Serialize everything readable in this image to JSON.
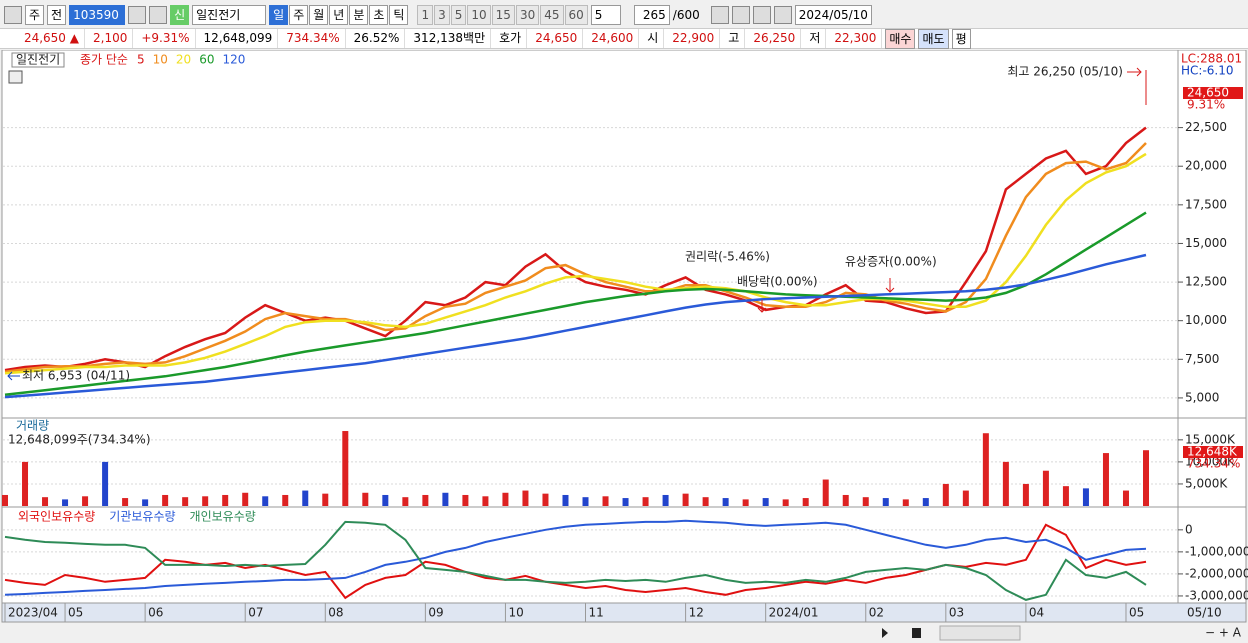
{
  "toolbar": {
    "type_label": "주",
    "mode": "전",
    "code": "103590",
    "badge": "신",
    "name": "일진전기",
    "periods": [
      "일",
      "주",
      "월",
      "년",
      "분",
      "초",
      "틱"
    ],
    "minutes": [
      "1",
      "3",
      "5",
      "10",
      "15",
      "30",
      "45",
      "60"
    ],
    "count_select": "5",
    "count": "265",
    "max": "/600",
    "date": "2024/05/10"
  },
  "info_bar": {
    "price": "24,650",
    "arrow": "▲",
    "change": "2,100",
    "change_pct": "+9.31%",
    "volume": "12,648,099",
    "volume_pct": "734.34%",
    "turnover": "26.52%",
    "amount": "312,138백만",
    "quote_label": "호가",
    "ask": "24,650",
    "bid": "24,600",
    "open_label": "시",
    "open": "22,900",
    "high_label": "고",
    "high": "26,250",
    "low_label": "저",
    "low": "22,300",
    "buy": "매수",
    "sell": "매도",
    "avg": "평"
  },
  "chart_data": [
    {
      "type": "line",
      "name": "일진전기",
      "legend_title": "종가 단순",
      "ylim": [
        3700,
        27200
      ],
      "grid": true,
      "yticks": [
        {
          "value": 5000,
          "label": "5,000"
        },
        {
          "value": 7500,
          "label": "7,500"
        },
        {
          "value": 10000,
          "label": "10,000"
        },
        {
          "value": 12500,
          "label": "12,500"
        },
        {
          "value": 15000,
          "label": "15,000"
        },
        {
          "value": 17500,
          "label": "17,500"
        },
        {
          "value": 20000,
          "label": "20,000"
        },
        {
          "value": 22500,
          "label": "22,500"
        }
      ],
      "series": [
        {
          "name": "5",
          "color": "#d81818",
          "values": [
            6800,
            7000,
            7100,
            7000,
            7200,
            7500,
            7300,
            7000,
            7700,
            8300,
            8800,
            9200,
            10200,
            11000,
            10500,
            10000,
            10200,
            10000,
            9500,
            9000,
            10000,
            11200,
            11000,
            11500,
            12500,
            12300,
            13500,
            14300,
            13200,
            12500,
            12200,
            12000,
            11700,
            12300,
            12800,
            12000,
            11700,
            11300,
            10700,
            10900,
            11000,
            11700,
            12300,
            11300,
            11200,
            10800,
            10500,
            10600,
            12500,
            14500,
            18500,
            19500,
            20500,
            21000,
            19500,
            20000,
            21500,
            22500
          ]
        },
        {
          "name": "10",
          "color": "#f08c1e",
          "values": [
            6700,
            6850,
            7000,
            7050,
            7050,
            7200,
            7300,
            7200,
            7300,
            7700,
            8200,
            8700,
            9300,
            10100,
            10500,
            10300,
            10100,
            10100,
            9800,
            9400,
            9500,
            10300,
            10900,
            11100,
            11800,
            12200,
            12600,
            13400,
            13600,
            13000,
            12500,
            12200,
            11900,
            11900,
            12300,
            12300,
            11900,
            11500,
            11000,
            10900,
            10900,
            11200,
            11800,
            11700,
            11300,
            11100,
            10800,
            10600,
            11200,
            12700,
            15500,
            18000,
            19500,
            20200,
            20300,
            19800,
            20200,
            21500
          ]
        },
        {
          "name": "20",
          "color": "#f0e020",
          "values": [
            6600,
            6700,
            6800,
            6900,
            7000,
            7000,
            7100,
            7100,
            7100,
            7300,
            7600,
            8000,
            8500,
            9000,
            9600,
            9900,
            10000,
            10000,
            9900,
            9700,
            9600,
            9800,
            10200,
            10600,
            11000,
            11500,
            11900,
            12400,
            12800,
            12900,
            12700,
            12500,
            12200,
            12000,
            12100,
            12200,
            12100,
            11900,
            11500,
            11200,
            11000,
            11000,
            11200,
            11400,
            11400,
            11300,
            11100,
            10900,
            10900,
            11300,
            12500,
            14200,
            16200,
            17800,
            18900,
            19600,
            20000,
            20800
          ]
        },
        {
          "name": "60",
          "color": "#1a9a2a",
          "values": [
            5200,
            5350,
            5500,
            5650,
            5800,
            5950,
            6100,
            6250,
            6400,
            6600,
            6800,
            7000,
            7250,
            7500,
            7750,
            8000,
            8200,
            8400,
            8600,
            8800,
            9000,
            9200,
            9450,
            9700,
            9950,
            10200,
            10450,
            10700,
            10950,
            11200,
            11400,
            11600,
            11750,
            11900,
            12000,
            12050,
            12000,
            11900,
            11800,
            11700,
            11650,
            11600,
            11550,
            11500,
            11450,
            11400,
            11350,
            11300,
            11350,
            11500,
            11800,
            12300,
            13000,
            13800,
            14600,
            15400,
            16200,
            17000
          ]
        },
        {
          "name": "120",
          "color": "#2a5ad8",
          "values": [
            5050,
            5150,
            5250,
            5350,
            5450,
            5550,
            5650,
            5750,
            5850,
            5950,
            6050,
            6200,
            6350,
            6500,
            6650,
            6800,
            6950,
            7100,
            7250,
            7450,
            7650,
            7850,
            8050,
            8250,
            8450,
            8650,
            8850,
            9100,
            9350,
            9600,
            9850,
            10100,
            10350,
            10600,
            10850,
            11050,
            11200,
            11300,
            11400,
            11450,
            11500,
            11550,
            11600,
            11650,
            11700,
            11750,
            11800,
            11850,
            11900,
            12000,
            12150,
            12350,
            12650,
            12950,
            13300,
            13650,
            13950,
            14250
          ]
        }
      ],
      "annotations": [
        "최고 26,250 (05/10)",
        "최저 6,953 (04/11)",
        "권리락(-5.46%)",
        "배당락(0.00%)",
        "유상증자(0.00%)"
      ],
      "right_labels": {
        "lc": "LC:288.01",
        "hc": "HC:-6.10",
        "price": "24,650",
        "pct": "9.31%"
      }
    },
    {
      "type": "bar",
      "title": "거래량",
      "subtitle": "12,648,099주(734.34%)",
      "ylim": [
        0,
        19500
      ],
      "grid": true,
      "yticks": [
        {
          "value": 5000,
          "label": "5,000K"
        },
        {
          "value": 10000,
          "label": "10,000K"
        },
        {
          "value": 15000,
          "label": "15,000K"
        }
      ],
      "values": [
        2500,
        10000,
        2000,
        1500,
        2200,
        10000,
        1800,
        1500,
        2500,
        2000,
        2200,
        2500,
        3000,
        2200,
        2500,
        3500,
        2800,
        17000,
        3000,
        2500,
        2000,
        2500,
        3000,
        2500,
        2200,
        3000,
        3500,
        2800,
        2500,
        2000,
        2200,
        1800,
        2000,
        2500,
        2800,
        2000,
        1800,
        1500,
        1800,
        1500,
        1800,
        6000,
        2500,
        2000,
        1800,
        1500,
        1800,
        5000,
        3500,
        16500,
        10000,
        5000,
        8000,
        4500,
        4000,
        12000,
        3500,
        12648
      ],
      "colors": [
        "#d22",
        "#d22",
        "#d22",
        "#24c",
        "#d22",
        "#24c",
        "#d22",
        "#24c",
        "#d22",
        "#d22",
        "#d22",
        "#d22",
        "#d22",
        "#24c",
        "#d22",
        "#24c",
        "#d22",
        "#d22",
        "#d22",
        "#24c",
        "#d22",
        "#d22",
        "#24c",
        "#d22",
        "#d22",
        "#d22",
        "#d22",
        "#d22",
        "#24c",
        "#24c",
        "#d22",
        "#24c",
        "#d22",
        "#24c",
        "#d22",
        "#d22",
        "#24c",
        "#d22",
        "#24c",
        "#d22",
        "#d22",
        "#d22",
        "#d22",
        "#d22",
        "#24c",
        "#d22",
        "#24c",
        "#d22",
        "#d22",
        "#d22",
        "#d22",
        "#d22",
        "#d22",
        "#d22",
        "#24c",
        "#d22",
        "#d22",
        "#d22"
      ],
      "last_labels": {
        "value": "12,648K",
        "pct": "734.34%"
      }
    },
    {
      "type": "line",
      "ylim": [
        -3320000,
        900000
      ],
      "grid": true,
      "yticks": [
        0,
        {
          "value": -1000000,
          "label": "-1,000,000"
        },
        {
          "value": -2000000,
          "label": "-2,000,000"
        },
        {
          "value": -3000000,
          "label": "-3,000,000"
        }
      ],
      "categories": [
        "2023/04",
        null,
        null,
        "05",
        null,
        null,
        null,
        "06",
        null,
        null,
        null,
        null,
        "07",
        null,
        null,
        null,
        "08",
        null,
        null,
        null,
        null,
        "09",
        null,
        null,
        null,
        "10",
        null,
        null,
        null,
        "11",
        null,
        null,
        null,
        null,
        "12",
        null,
        null,
        null,
        "2024/01",
        null,
        null,
        null,
        null,
        "02",
        null,
        null,
        null,
        "03",
        null,
        null,
        null,
        "04",
        null,
        null,
        null,
        null,
        "05",
        null
      ],
      "last_date": "05/10",
      "series": [
        {
          "name": "외국인보유수량",
          "color": "#e01010",
          "values": [
            -2270000,
            -2410000,
            -2500000,
            -2050000,
            -2180000,
            -2360000,
            -2270000,
            -2180000,
            -1360000,
            -1450000,
            -1590000,
            -1500000,
            -1730000,
            -1590000,
            -1820000,
            -2050000,
            -1910000,
            -3090000,
            -2500000,
            -2180000,
            -2050000,
            -1450000,
            -1590000,
            -1910000,
            -2180000,
            -2270000,
            -2090000,
            -2360000,
            -2500000,
            -2640000,
            -2550000,
            -2730000,
            -2820000,
            -2730000,
            -2640000,
            -2820000,
            -2950000,
            -2730000,
            -2640000,
            -2500000,
            -2360000,
            -2450000,
            -2270000,
            -2410000,
            -2180000,
            -2050000,
            -1820000,
            -1590000,
            -1680000,
            -1500000,
            -1590000,
            -1360000,
            230000,
            -230000,
            -1730000,
            -1360000,
            -1590000,
            -1450000
          ]
        },
        {
          "name": "기관보유수량",
          "color": "#2a5ad8",
          "values": [
            -2950000,
            -2910000,
            -2860000,
            -2820000,
            -2770000,
            -2730000,
            -2680000,
            -2640000,
            -2550000,
            -2500000,
            -2450000,
            -2410000,
            -2360000,
            -2320000,
            -2270000,
            -2270000,
            -2230000,
            -2180000,
            -1910000,
            -1590000,
            -1450000,
            -1270000,
            -1000000,
            -820000,
            -550000,
            -360000,
            -180000,
            0,
            140000,
            230000,
            270000,
            320000,
            360000,
            360000,
            410000,
            360000,
            320000,
            230000,
            180000,
            230000,
            270000,
            320000,
            230000,
            0,
            -230000,
            -450000,
            -680000,
            -820000,
            -680000,
            -450000,
            -360000,
            -550000,
            -450000,
            -820000,
            -1360000,
            -1140000,
            -910000,
            -860000
          ]
        },
        {
          "name": "개인보유수량",
          "color": "#2e8b57",
          "values": [
            -320000,
            -450000,
            -550000,
            -590000,
            -640000,
            -680000,
            -680000,
            -820000,
            -1590000,
            -1590000,
            -1590000,
            -1640000,
            -1590000,
            -1640000,
            -1590000,
            -1550000,
            -680000,
            360000,
            320000,
            230000,
            -450000,
            -1730000,
            -1820000,
            -1910000,
            -2090000,
            -2270000,
            -2270000,
            -2360000,
            -2410000,
            -2360000,
            -2270000,
            -2320000,
            -2270000,
            -2360000,
            -2180000,
            -2050000,
            -2270000,
            -2410000,
            -2360000,
            -2410000,
            -2270000,
            -2360000,
            -2180000,
            -1910000,
            -1820000,
            -1730000,
            -1820000,
            -1590000,
            -1730000,
            -2050000,
            -2730000,
            -3180000,
            -2950000,
            -1360000,
            -2050000,
            -2180000,
            -1910000,
            -2500000
          ]
        }
      ]
    }
  ]
}
